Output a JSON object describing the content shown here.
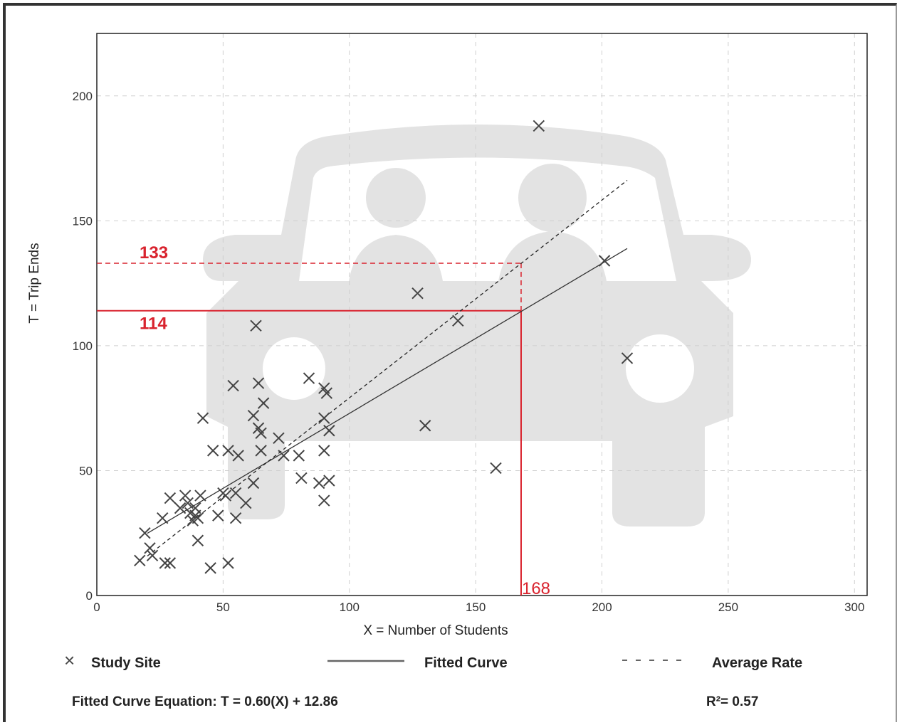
{
  "chart_data": {
    "type": "scatter",
    "title": "",
    "xlabel": "X = Number of Students",
    "ylabel": "T = Trip Ends",
    "xlim": [
      0,
      305
    ],
    "ylim": [
      0,
      225
    ],
    "x_ticks": [
      "0",
      "50",
      "100",
      "150",
      "200",
      "250",
      "300"
    ],
    "y_ticks": [
      "0",
      "50",
      "100",
      "150",
      "200"
    ],
    "grid": true,
    "background_icon": "car-with-passengers-icon",
    "series": [
      {
        "name": "Study Site",
        "marker": "x",
        "points": [
          [
            17,
            14
          ],
          [
            19,
            25
          ],
          [
            21,
            19
          ],
          [
            22,
            16
          ],
          [
            26,
            31
          ],
          [
            27,
            13
          ],
          [
            29,
            13
          ],
          [
            29,
            39
          ],
          [
            33,
            35
          ],
          [
            35,
            40
          ],
          [
            36,
            37
          ],
          [
            37,
            33
          ],
          [
            38,
            30
          ],
          [
            39,
            35
          ],
          [
            39,
            32
          ],
          [
            40,
            31
          ],
          [
            40,
            22
          ],
          [
            41,
            40
          ],
          [
            42,
            71
          ],
          [
            45,
            11
          ],
          [
            46,
            58
          ],
          [
            48,
            32
          ],
          [
            50,
            41
          ],
          [
            51,
            40
          ],
          [
            52,
            58
          ],
          [
            52,
            13
          ],
          [
            54,
            84
          ],
          [
            55,
            31
          ],
          [
            55,
            41
          ],
          [
            56,
            56
          ],
          [
            59,
            37
          ],
          [
            62,
            72
          ],
          [
            62,
            45
          ],
          [
            63,
            108
          ],
          [
            64,
            85
          ],
          [
            64,
            67
          ],
          [
            65,
            65
          ],
          [
            65,
            58
          ],
          [
            66,
            77
          ],
          [
            72,
            63
          ],
          [
            74,
            56
          ],
          [
            80,
            56
          ],
          [
            81,
            47
          ],
          [
            84,
            87
          ],
          [
            88,
            45
          ],
          [
            90,
            83
          ],
          [
            90,
            71
          ],
          [
            90,
            58
          ],
          [
            90,
            38
          ],
          [
            91,
            81
          ],
          [
            92,
            66
          ],
          [
            92,
            46
          ],
          [
            127,
            121
          ],
          [
            130,
            68
          ],
          [
            143,
            110
          ],
          [
            158,
            51
          ],
          [
            175,
            188
          ],
          [
            201,
            134
          ],
          [
            210,
            95
          ]
        ]
      },
      {
        "name": "Fitted Curve",
        "style": "solid",
        "x": [
          20,
          210
        ],
        "y": [
          24.9,
          138.9
        ]
      },
      {
        "name": "Average Rate",
        "style": "dashed",
        "x": [
          20,
          210
        ],
        "y": [
          15.8,
          166.2
        ]
      }
    ],
    "annotations": [
      {
        "label": "133",
        "value": 133,
        "style": "dashed",
        "color": "#d9232e"
      },
      {
        "label": "114",
        "value": 114,
        "style": "solid",
        "color": "#d9232e"
      },
      {
        "label": "168",
        "value": 168,
        "style": "solid",
        "color": "#d9232e"
      }
    ],
    "legend": [
      {
        "symbol": "×",
        "label": "Study Site"
      },
      {
        "symbol": "solid-line",
        "label": "Fitted Curve"
      },
      {
        "symbol": "dashed-line",
        "label": "Average Rate"
      }
    ],
    "legend_position": "bottom",
    "equation": "Fitted Curve Equation: T = 0.60(X) + 12.86",
    "r_squared": "R²= 0.57",
    "colors": {
      "points": "#444444",
      "annotation": "#d9232e",
      "grid": "#cccccc",
      "watermark": "#e3e3e3"
    }
  }
}
